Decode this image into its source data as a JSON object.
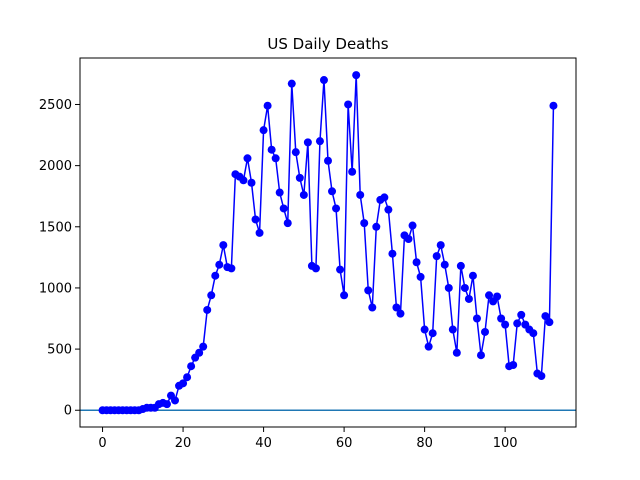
{
  "chart_data": {
    "type": "line",
    "title": "US Daily Deaths",
    "xlabel": "",
    "ylabel": "",
    "xlim": [
      -5.6,
      117.6
    ],
    "ylim": [
      -137,
      2880
    ],
    "xticks": [
      0,
      20,
      40,
      60,
      80,
      100
    ],
    "yticks": [
      0,
      500,
      1000,
      1500,
      2000,
      2500
    ],
    "grid": false,
    "legend": "none",
    "series": [
      {
        "color": "#0000ff",
        "marker": "circle",
        "values": [
          0,
          0,
          0,
          0,
          0,
          0,
          0,
          0,
          0,
          0,
          10,
          20,
          20,
          20,
          50,
          60,
          50,
          120,
          80,
          200,
          220,
          270,
          360,
          430,
          470,
          520,
          820,
          940,
          1100,
          1190,
          1350,
          1170,
          1160,
          1930,
          1910,
          1880,
          2060,
          1860,
          1560,
          1450,
          2290,
          2490,
          2130,
          2060,
          1780,
          1650,
          1530,
          2670,
          2110,
          1900,
          1760,
          2190,
          1180,
          1160,
          2200,
          2700,
          2040,
          1790,
          1650,
          1150,
          940,
          2500,
          1950,
          2740,
          1760,
          1530,
          980,
          840,
          1500,
          1720,
          1740,
          1640,
          1280,
          840,
          790,
          1430,
          1400,
          1510,
          1210,
          1090,
          660,
          520,
          630,
          1260,
          1350,
          1190,
          1000,
          660,
          470,
          1180,
          1000,
          910,
          1100,
          750,
          450,
          640,
          940,
          890,
          930,
          750,
          700,
          360,
          370,
          710,
          780,
          700,
          660,
          630,
          300,
          280,
          770,
          720,
          2490
        ]
      }
    ],
    "reference_line": {
      "y": 0,
      "color": "#1f77b4"
    },
    "tick_labels": {
      "x": [
        "0",
        "20",
        "40",
        "60",
        "80",
        "100"
      ],
      "y": [
        "0",
        "500",
        "1000",
        "1500",
        "2000",
        "2500"
      ]
    }
  }
}
